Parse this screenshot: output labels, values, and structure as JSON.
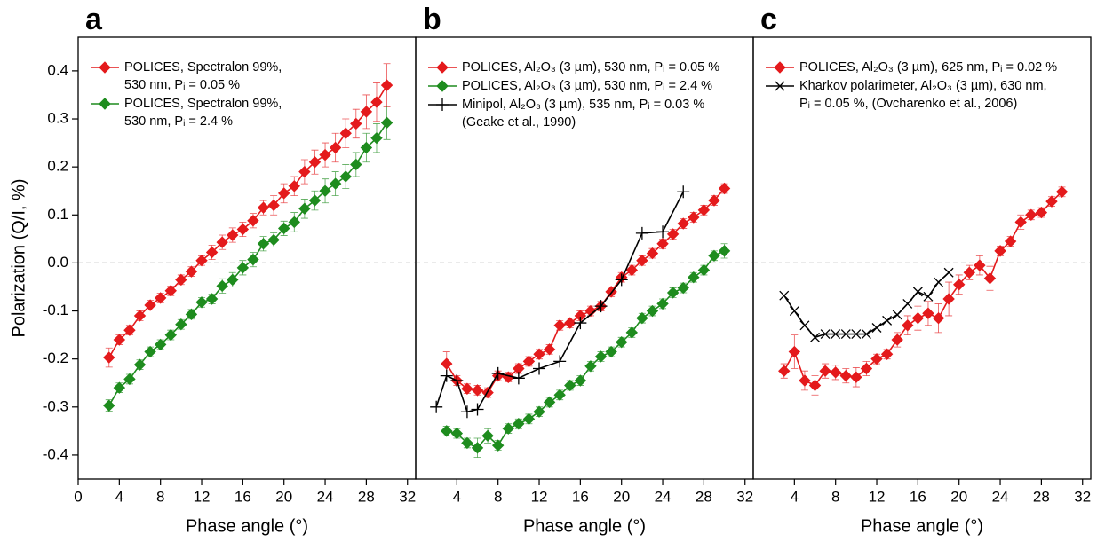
{
  "chart_data": [
    {
      "type": "line",
      "title": "a",
      "xlabel": "Phase angle (°)",
      "ylabel": "Polarization (Q/I, %)",
      "xlim": [
        0,
        32.8
      ],
      "xticks": [
        0,
        4,
        8,
        12,
        16,
        20,
        24,
        28,
        32
      ],
      "ylim": [
        -0.45,
        0.47
      ],
      "yticks": [
        -0.4,
        -0.3,
        -0.2,
        -0.1,
        {
          "value": 0,
          "label": "0.0"
        },
        0.1,
        0.2,
        0.3,
        0.4
      ],
      "zero_line": true,
      "series": [
        {
          "name": "POLICES, Spectralon 99%,\n530 nm, Pᵢ = 0.05 %",
          "color": "#e41a1c",
          "marker": "diamond",
          "x": [
            3,
            4,
            5,
            6,
            7,
            8,
            9,
            10,
            11,
            12,
            13,
            14,
            15,
            16,
            17,
            18,
            19,
            20,
            21,
            22,
            23,
            24,
            25,
            26,
            27,
            28,
            29,
            30
          ],
          "values": [
            -0.197,
            -0.16,
            -0.14,
            -0.11,
            -0.088,
            -0.073,
            -0.058,
            -0.035,
            -0.018,
            0.005,
            0.022,
            0.043,
            0.058,
            0.07,
            0.088,
            0.115,
            0.12,
            0.145,
            0.16,
            0.19,
            0.21,
            0.225,
            0.24,
            0.27,
            0.29,
            0.315,
            0.335,
            0.37
          ],
          "errors": [
            0.02,
            0.01,
            0.01,
            0.01,
            0.01,
            0.01,
            0.01,
            0.01,
            0.01,
            0.01,
            0.015,
            0.015,
            0.015,
            0.015,
            0.015,
            0.015,
            0.02,
            0.02,
            0.02,
            0.025,
            0.025,
            0.025,
            0.03,
            0.03,
            0.03,
            0.035,
            0.04,
            0.045
          ]
        },
        {
          "name": "POLICES, Spectralon 99%,\n530 nm, Pᵢ = 2.4 %",
          "color": "#1e8c1e",
          "marker": "diamond",
          "x": [
            3,
            4,
            5,
            6,
            7,
            8,
            9,
            10,
            11,
            12,
            13,
            14,
            15,
            16,
            17,
            18,
            19,
            20,
            21,
            22,
            23,
            24,
            25,
            26,
            27,
            28,
            29,
            30
          ],
          "values": [
            -0.297,
            -0.26,
            -0.242,
            -0.212,
            -0.185,
            -0.17,
            -0.15,
            -0.128,
            -0.107,
            -0.082,
            -0.075,
            -0.048,
            -0.035,
            -0.01,
            0.007,
            0.04,
            0.048,
            0.072,
            0.085,
            0.113,
            0.13,
            0.15,
            0.165,
            0.18,
            0.205,
            0.24,
            0.26,
            0.292
          ],
          "errors": [
            0.012,
            0.01,
            0.01,
            0.01,
            0.01,
            0.01,
            0.01,
            0.01,
            0.01,
            0.01,
            0.01,
            0.015,
            0.015,
            0.015,
            0.015,
            0.015,
            0.015,
            0.015,
            0.02,
            0.02,
            0.02,
            0.025,
            0.025,
            0.025,
            0.025,
            0.03,
            0.03,
            0.035
          ]
        }
      ]
    },
    {
      "type": "line",
      "title": "b",
      "xlabel": "Phase angle (°)",
      "xlim": [
        0,
        32.8
      ],
      "xticks": [
        4,
        8,
        12,
        16,
        20,
        24,
        28,
        32
      ],
      "ylim": [
        -0.45,
        0.47
      ],
      "zero_line": true,
      "series": [
        {
          "name": "POLICES, Al₂O₃ (3 µm), 530 nm, Pᵢ = 0.05 %",
          "color": "#e41a1c",
          "marker": "diamond",
          "x": [
            3,
            4,
            5,
            6,
            7,
            8,
            9,
            10,
            11,
            12,
            13,
            14,
            15,
            16,
            17,
            18,
            19,
            20,
            21,
            22,
            23,
            24,
            25,
            26,
            27,
            28,
            29,
            30
          ],
          "values": [
            -0.21,
            -0.245,
            -0.262,
            -0.265,
            -0.27,
            -0.235,
            -0.238,
            -0.22,
            -0.205,
            -0.19,
            -0.18,
            -0.13,
            -0.125,
            -0.11,
            -0.1,
            -0.09,
            -0.06,
            -0.03,
            -0.015,
            0.005,
            0.02,
            0.04,
            0.06,
            0.082,
            0.095,
            0.11,
            0.13,
            0.155
          ],
          "errors": [
            0.025,
            0.01,
            0.01,
            0.01,
            0.01,
            0.01,
            0.01,
            0.01,
            0.01,
            0.01,
            0.01,
            0.01,
            0.01,
            0.01,
            0.01,
            0.01,
            0.01,
            0.01,
            0.01,
            0.01,
            0.01,
            0.01,
            0.01,
            0.01,
            0.01,
            0.01,
            0.01,
            0.01
          ]
        },
        {
          "name": "POLICES, Al₂O₃ (3 µm), 530 nm, Pᵢ = 2.4 %",
          "color": "#1e8c1e",
          "marker": "diamond",
          "x": [
            3,
            4,
            5,
            6,
            7,
            8,
            9,
            10,
            11,
            12,
            13,
            14,
            15,
            16,
            17,
            18,
            19,
            20,
            21,
            22,
            23,
            24,
            25,
            26,
            27,
            28,
            29,
            30
          ],
          "values": [
            -0.35,
            -0.355,
            -0.375,
            -0.385,
            -0.36,
            -0.38,
            -0.345,
            -0.335,
            -0.325,
            -0.31,
            -0.29,
            -0.275,
            -0.255,
            -0.245,
            -0.215,
            -0.195,
            -0.185,
            -0.165,
            -0.145,
            -0.115,
            -0.1,
            -0.085,
            -0.062,
            -0.052,
            -0.03,
            -0.015,
            0.015,
            0.025
          ],
          "errors": [
            0.01,
            0.01,
            0.01,
            0.02,
            0.015,
            0.01,
            0.01,
            0.01,
            0.01,
            0.01,
            0.01,
            0.01,
            0.01,
            0.01,
            0.01,
            0.01,
            0.01,
            0.01,
            0.01,
            0.01,
            0.01,
            0.01,
            0.01,
            0.01,
            0.01,
            0.01,
            0.01,
            0.015
          ]
        },
        {
          "name": "Minipol, Al₂O₃ (3 µm), 535 nm, Pᵢ = 0.03 %\n(Geake et al., 1990)",
          "color": "#000000",
          "marker": "plus",
          "x": [
            2,
            3,
            4,
            5,
            6,
            8,
            10,
            12,
            14,
            16,
            18,
            20,
            22,
            24,
            26
          ],
          "values": [
            -0.3,
            -0.235,
            -0.245,
            -0.31,
            -0.305,
            -0.23,
            -0.24,
            -0.22,
            -0.205,
            -0.125,
            -0.09,
            -0.035,
            0.062,
            0.065,
            0.148
          ]
        }
      ]
    },
    {
      "type": "line",
      "title": "c",
      "xlabel": "Phase angle (°)",
      "xlim": [
        0,
        32.8
      ],
      "xticks": [
        4,
        8,
        12,
        16,
        20,
        24,
        28,
        32
      ],
      "ylim": [
        -0.45,
        0.47
      ],
      "zero_line": true,
      "series": [
        {
          "name": "POLICES, Al₂O₃ (3 µm), 625 nm, Pᵢ = 0.02 %",
          "color": "#e41a1c",
          "marker": "diamond",
          "x": [
            3,
            4,
            5,
            6,
            7,
            8,
            9,
            10,
            11,
            12,
            13,
            14,
            15,
            16,
            17,
            18,
            19,
            20,
            21,
            22,
            23,
            24,
            25,
            26,
            27,
            28,
            29,
            30
          ],
          "values": [
            -0.225,
            -0.185,
            -0.245,
            -0.255,
            -0.225,
            -0.228,
            -0.235,
            -0.238,
            -0.22,
            -0.2,
            -0.19,
            -0.16,
            -0.13,
            -0.115,
            -0.105,
            -0.115,
            -0.075,
            -0.045,
            -0.02,
            -0.005,
            -0.032,
            0.025,
            0.045,
            0.085,
            0.1,
            0.105,
            0.128,
            0.148
          ],
          "errors": [
            0.015,
            0.035,
            0.02,
            0.02,
            0.015,
            0.015,
            0.015,
            0.02,
            0.015,
            0.01,
            0.01,
            0.015,
            0.02,
            0.025,
            0.025,
            0.03,
            0.035,
            0.02,
            0.015,
            0.02,
            0.025,
            0.01,
            0.01,
            0.015,
            0.01,
            0.01,
            0.01,
            0.01
          ]
        },
        {
          "name": "Kharkov polarimeter, Al₂O₃ (3 µm), 630 nm,\nPᵢ = 0.05 %, (Ovcharenko et al., 2006)",
          "color": "#000000",
          "marker": "cross",
          "x": [
            3,
            4,
            5,
            6,
            7,
            8,
            9,
            10,
            11,
            12,
            13,
            14,
            15,
            16,
            17,
            18,
            19
          ],
          "values": [
            -0.068,
            -0.1,
            -0.13,
            -0.155,
            -0.148,
            -0.148,
            -0.148,
            -0.148,
            -0.148,
            -0.135,
            -0.12,
            -0.108,
            -0.085,
            -0.06,
            -0.07,
            -0.04,
            -0.02
          ]
        }
      ]
    }
  ]
}
